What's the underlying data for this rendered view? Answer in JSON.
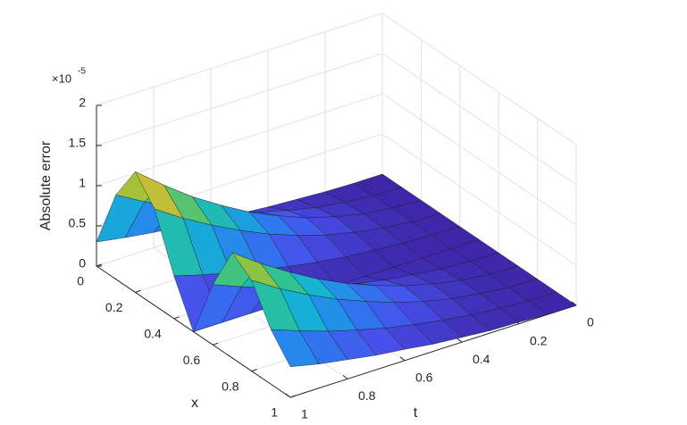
{
  "chart_data": {
    "type": "surface",
    "zlabel": "Absolute error",
    "xlabel": "x",
    "tlabel": "t",
    "z_multiplier": {
      "base": "×10",
      "exponent": "-5"
    },
    "x": [
      0,
      0.1,
      0.2,
      0.3,
      0.4,
      0.5,
      0.6,
      0.7,
      0.8,
      0.9,
      1
    ],
    "t": [
      0,
      0.1,
      0.2,
      0.3,
      0.4,
      0.5,
      0.6,
      0.7,
      0.8,
      0.9,
      1
    ],
    "z": [
      [
        0,
        0,
        0.01,
        0.03,
        0.05,
        0.08,
        0.11,
        0.15,
        0.19,
        0.24,
        0.3
      ],
      [
        0,
        0.01,
        0.04,
        0.09,
        0.17,
        0.26,
        0.38,
        0.51,
        0.67,
        0.85,
        1.05
      ],
      [
        0,
        0.02,
        0.06,
        0.14,
        0.24,
        0.38,
        0.54,
        0.74,
        0.96,
        1.22,
        1.5
      ],
      [
        0,
        0.01,
        0.05,
        0.11,
        0.19,
        0.3,
        0.43,
        0.59,
        0.77,
        0.97,
        1.2
      ],
      [
        0,
        0.01,
        0.02,
        0.05,
        0.08,
        0.13,
        0.19,
        0.26,
        0.34,
        0.43,
        0.53
      ],
      [
        0,
        0,
        0,
        0,
        0,
        0,
        0,
        0,
        0,
        0,
        0
      ],
      [
        0,
        0.01,
        0.03,
        0.07,
        0.12,
        0.19,
        0.27,
        0.37,
        0.48,
        0.61,
        0.75
      ],
      [
        0,
        0.01,
        0.05,
        0.12,
        0.21,
        0.33,
        0.47,
        0.64,
        0.84,
        1.06,
        1.31
      ],
      [
        0,
        0.01,
        0.05,
        0.1,
        0.18,
        0.28,
        0.41,
        0.55,
        0.72,
        0.91,
        1.13
      ],
      [
        0,
        0.01,
        0.03,
        0.06,
        0.11,
        0.17,
        0.24,
        0.33,
        0.43,
        0.55,
        0.68
      ],
      [
        0,
        0,
        0.02,
        0.03,
        0.06,
        0.09,
        0.14,
        0.18,
        0.24,
        0.3,
        0.38
      ]
    ],
    "xlim": [
      0,
      1
    ],
    "tlim": [
      0,
      1
    ],
    "zlim": [
      0,
      2
    ],
    "xticks": [
      0,
      0.2,
      0.4,
      0.6,
      0.8,
      1
    ],
    "tticks": [
      0,
      0.2,
      0.4,
      0.6,
      0.8,
      1
    ],
    "zticks": [
      0,
      0.5,
      1,
      1.5,
      2
    ],
    "grid": true,
    "colormap": "parula",
    "edge_color": "#1a1a1a"
  }
}
